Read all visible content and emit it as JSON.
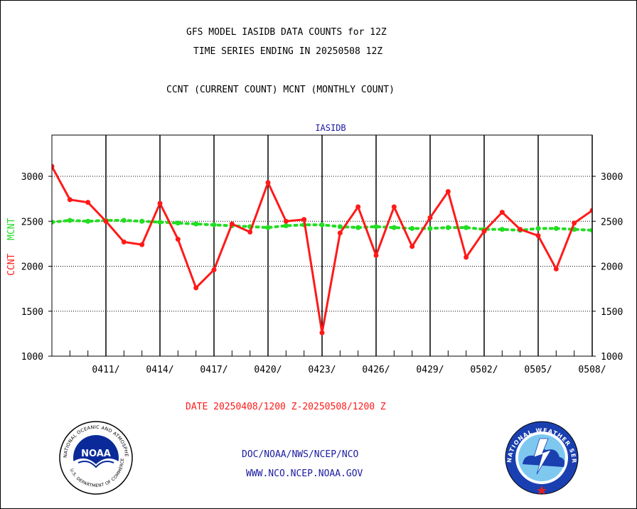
{
  "header": {
    "title_line1": "GFS MODEL IASIDB DATA COUNTS for 12Z",
    "title_line2": "TIME SERIES ENDING IN 20250508 12Z",
    "subtitle": "CCNT (CURRENT COUNT) MCNT (MONTHLY COUNT)"
  },
  "footer": {
    "date_range": "DATE 20250408/1200 Z-20250508/1200 Z",
    "link1": "DOC/NOAA/NWS/NCEP/NCO",
    "link2": "WWW.NCO.NCEP.NOAA.GOV"
  },
  "logos": {
    "noaa_text": "NOAA",
    "noaa_ring": "NATIONAL OCEANIC AND ATMOSPHERIC ADMINISTRATION",
    "noaa_ring_bottom": "U.S. DEPARTMENT OF COMMERCE",
    "nws_ring": "NATIONAL WEATHER SERVICE"
  },
  "colors": {
    "ccnt": "#ff1a1a",
    "mcnt": "#22dd22",
    "date_text": "#ff1a1a",
    "link_text": "#1a1aa0",
    "panel_label": "#1a1aa0"
  },
  "chart_data": {
    "type": "line",
    "panel_label": "IASIDB",
    "ylabel_ccnt": "CCNT",
    "ylabel_mcnt": "MCNT",
    "ylim": [
      1000,
      3400
    ],
    "yticks": [
      1000,
      1500,
      2000,
      2500,
      3000
    ],
    "xlim": [
      0,
      30
    ],
    "x_tick_positions": [
      3,
      6,
      9,
      12,
      15,
      18,
      21,
      24,
      27,
      30
    ],
    "x_tick_labels": [
      "0411/",
      "0414/",
      "0417/",
      "0420/",
      "0423/",
      "0426/",
      "0429/",
      "0502/",
      "0505/",
      "0508/"
    ],
    "grid": true,
    "series": [
      {
        "name": "CCNT",
        "style": "solid",
        "x": [
          0,
          1,
          2,
          3,
          4,
          5,
          6,
          7,
          8,
          9,
          10,
          11,
          12,
          13,
          14,
          15,
          16,
          17,
          18,
          19,
          20,
          21,
          22,
          23,
          24,
          25,
          26,
          27,
          28,
          29,
          30
        ],
        "values": [
          3110,
          2740,
          2710,
          2500,
          2270,
          2240,
          2700,
          2300,
          1760,
          1960,
          2470,
          2380,
          2930,
          2500,
          2520,
          1260,
          2370,
          2660,
          2120,
          2660,
          2220,
          2540,
          2830,
          2100,
          2390,
          2600,
          2410,
          2340,
          1970,
          2480,
          2620
        ]
      },
      {
        "name": "MCNT",
        "style": "dotted",
        "x": [
          0,
          1,
          2,
          3,
          4,
          5,
          6,
          7,
          8,
          9,
          10,
          11,
          12,
          13,
          14,
          15,
          16,
          17,
          18,
          19,
          20,
          21,
          22,
          23,
          24,
          25,
          26,
          27,
          28,
          29,
          30
        ],
        "values": [
          2490,
          2510,
          2500,
          2510,
          2510,
          2500,
          2490,
          2480,
          2470,
          2460,
          2450,
          2440,
          2430,
          2450,
          2460,
          2460,
          2440,
          2430,
          2440,
          2430,
          2420,
          2420,
          2430,
          2430,
          2410,
          2410,
          2400,
          2420,
          2420,
          2410,
          2400
        ]
      }
    ]
  }
}
